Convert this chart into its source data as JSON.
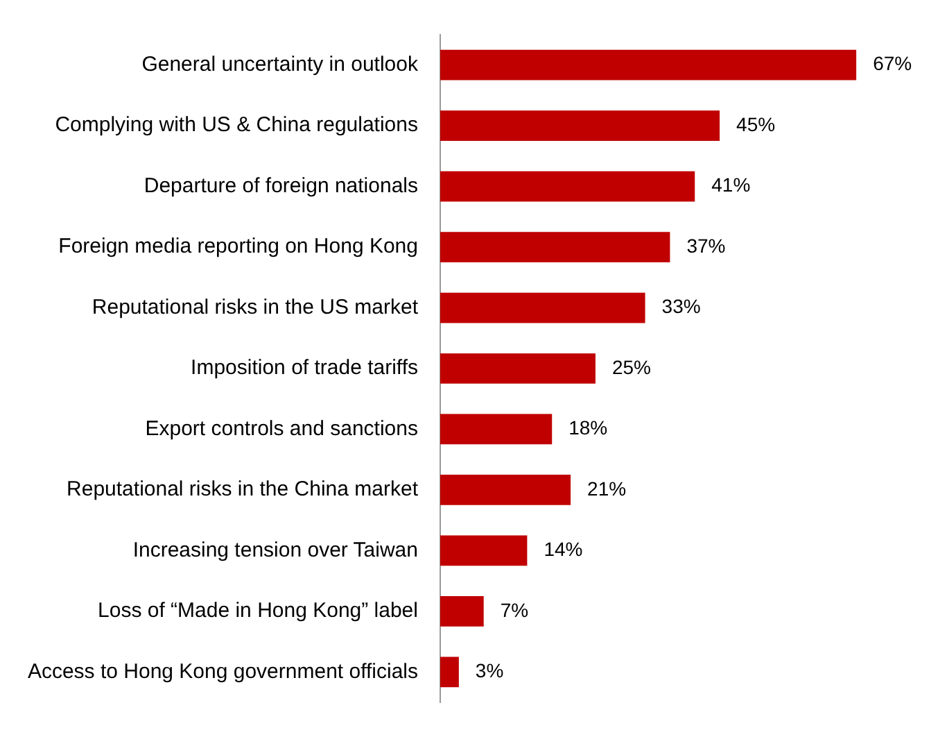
{
  "chart_data": {
    "type": "bar",
    "orientation": "horizontal",
    "categories": [
      "General uncertainty in outlook",
      "Complying with US & China regulations",
      "Departure of foreign nationals",
      "Foreign media reporting on Hong Kong",
      "Reputational risks in the US market",
      "Imposition of trade tariffs",
      "Export controls and sanctions",
      "Reputational risks in the China market",
      "Increasing tension over Taiwan",
      "Loss of “Made in Hong Kong” label",
      "Access to Hong Kong government officials"
    ],
    "values": [
      67,
      45,
      41,
      37,
      33,
      25,
      18,
      21,
      14,
      7,
      3
    ],
    "value_labels": [
      "67%",
      "45%",
      "41%",
      "37%",
      "33%",
      "25%",
      "18%",
      "21%",
      "14%",
      "7%",
      "3%"
    ],
    "color": "#c00000",
    "tick_labels": "y"
  }
}
